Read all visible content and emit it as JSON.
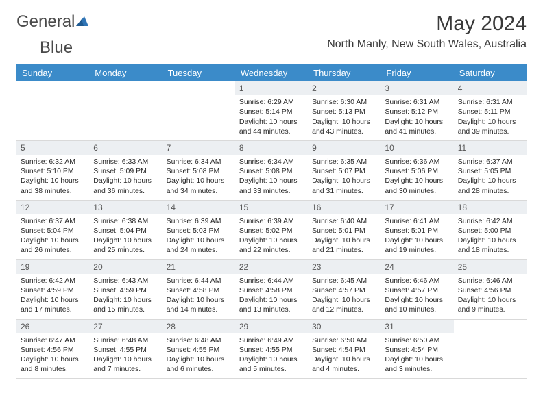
{
  "logo": {
    "word1": "General",
    "word2": "Blue"
  },
  "title": "May 2024",
  "location": "North Manly, New South Wales, Australia",
  "colors": {
    "header_bg": "#3b8bc9",
    "header_text": "#ffffff",
    "daynum_bg": "#eceff2",
    "logo_accent": "#2f74b5"
  },
  "day_headers": [
    "Sunday",
    "Monday",
    "Tuesday",
    "Wednesday",
    "Thursday",
    "Friday",
    "Saturday"
  ],
  "weeks": [
    [
      {
        "n": "",
        "sr": "",
        "ss": "",
        "dl": ""
      },
      {
        "n": "",
        "sr": "",
        "ss": "",
        "dl": ""
      },
      {
        "n": "",
        "sr": "",
        "ss": "",
        "dl": ""
      },
      {
        "n": "1",
        "sr": "Sunrise: 6:29 AM",
        "ss": "Sunset: 5:14 PM",
        "dl": "Daylight: 10 hours and 44 minutes."
      },
      {
        "n": "2",
        "sr": "Sunrise: 6:30 AM",
        "ss": "Sunset: 5:13 PM",
        "dl": "Daylight: 10 hours and 43 minutes."
      },
      {
        "n": "3",
        "sr": "Sunrise: 6:31 AM",
        "ss": "Sunset: 5:12 PM",
        "dl": "Daylight: 10 hours and 41 minutes."
      },
      {
        "n": "4",
        "sr": "Sunrise: 6:31 AM",
        "ss": "Sunset: 5:11 PM",
        "dl": "Daylight: 10 hours and 39 minutes."
      }
    ],
    [
      {
        "n": "5",
        "sr": "Sunrise: 6:32 AM",
        "ss": "Sunset: 5:10 PM",
        "dl": "Daylight: 10 hours and 38 minutes."
      },
      {
        "n": "6",
        "sr": "Sunrise: 6:33 AM",
        "ss": "Sunset: 5:09 PM",
        "dl": "Daylight: 10 hours and 36 minutes."
      },
      {
        "n": "7",
        "sr": "Sunrise: 6:34 AM",
        "ss": "Sunset: 5:08 PM",
        "dl": "Daylight: 10 hours and 34 minutes."
      },
      {
        "n": "8",
        "sr": "Sunrise: 6:34 AM",
        "ss": "Sunset: 5:08 PM",
        "dl": "Daylight: 10 hours and 33 minutes."
      },
      {
        "n": "9",
        "sr": "Sunrise: 6:35 AM",
        "ss": "Sunset: 5:07 PM",
        "dl": "Daylight: 10 hours and 31 minutes."
      },
      {
        "n": "10",
        "sr": "Sunrise: 6:36 AM",
        "ss": "Sunset: 5:06 PM",
        "dl": "Daylight: 10 hours and 30 minutes."
      },
      {
        "n": "11",
        "sr": "Sunrise: 6:37 AM",
        "ss": "Sunset: 5:05 PM",
        "dl": "Daylight: 10 hours and 28 minutes."
      }
    ],
    [
      {
        "n": "12",
        "sr": "Sunrise: 6:37 AM",
        "ss": "Sunset: 5:04 PM",
        "dl": "Daylight: 10 hours and 26 minutes."
      },
      {
        "n": "13",
        "sr": "Sunrise: 6:38 AM",
        "ss": "Sunset: 5:04 PM",
        "dl": "Daylight: 10 hours and 25 minutes."
      },
      {
        "n": "14",
        "sr": "Sunrise: 6:39 AM",
        "ss": "Sunset: 5:03 PM",
        "dl": "Daylight: 10 hours and 24 minutes."
      },
      {
        "n": "15",
        "sr": "Sunrise: 6:39 AM",
        "ss": "Sunset: 5:02 PM",
        "dl": "Daylight: 10 hours and 22 minutes."
      },
      {
        "n": "16",
        "sr": "Sunrise: 6:40 AM",
        "ss": "Sunset: 5:01 PM",
        "dl": "Daylight: 10 hours and 21 minutes."
      },
      {
        "n": "17",
        "sr": "Sunrise: 6:41 AM",
        "ss": "Sunset: 5:01 PM",
        "dl": "Daylight: 10 hours and 19 minutes."
      },
      {
        "n": "18",
        "sr": "Sunrise: 6:42 AM",
        "ss": "Sunset: 5:00 PM",
        "dl": "Daylight: 10 hours and 18 minutes."
      }
    ],
    [
      {
        "n": "19",
        "sr": "Sunrise: 6:42 AM",
        "ss": "Sunset: 4:59 PM",
        "dl": "Daylight: 10 hours and 17 minutes."
      },
      {
        "n": "20",
        "sr": "Sunrise: 6:43 AM",
        "ss": "Sunset: 4:59 PM",
        "dl": "Daylight: 10 hours and 15 minutes."
      },
      {
        "n": "21",
        "sr": "Sunrise: 6:44 AM",
        "ss": "Sunset: 4:58 PM",
        "dl": "Daylight: 10 hours and 14 minutes."
      },
      {
        "n": "22",
        "sr": "Sunrise: 6:44 AM",
        "ss": "Sunset: 4:58 PM",
        "dl": "Daylight: 10 hours and 13 minutes."
      },
      {
        "n": "23",
        "sr": "Sunrise: 6:45 AM",
        "ss": "Sunset: 4:57 PM",
        "dl": "Daylight: 10 hours and 12 minutes."
      },
      {
        "n": "24",
        "sr": "Sunrise: 6:46 AM",
        "ss": "Sunset: 4:57 PM",
        "dl": "Daylight: 10 hours and 10 minutes."
      },
      {
        "n": "25",
        "sr": "Sunrise: 6:46 AM",
        "ss": "Sunset: 4:56 PM",
        "dl": "Daylight: 10 hours and 9 minutes."
      }
    ],
    [
      {
        "n": "26",
        "sr": "Sunrise: 6:47 AM",
        "ss": "Sunset: 4:56 PM",
        "dl": "Daylight: 10 hours and 8 minutes."
      },
      {
        "n": "27",
        "sr": "Sunrise: 6:48 AM",
        "ss": "Sunset: 4:55 PM",
        "dl": "Daylight: 10 hours and 7 minutes."
      },
      {
        "n": "28",
        "sr": "Sunrise: 6:48 AM",
        "ss": "Sunset: 4:55 PM",
        "dl": "Daylight: 10 hours and 6 minutes."
      },
      {
        "n": "29",
        "sr": "Sunrise: 6:49 AM",
        "ss": "Sunset: 4:55 PM",
        "dl": "Daylight: 10 hours and 5 minutes."
      },
      {
        "n": "30",
        "sr": "Sunrise: 6:50 AM",
        "ss": "Sunset: 4:54 PM",
        "dl": "Daylight: 10 hours and 4 minutes."
      },
      {
        "n": "31",
        "sr": "Sunrise: 6:50 AM",
        "ss": "Sunset: 4:54 PM",
        "dl": "Daylight: 10 hours and 3 minutes."
      },
      {
        "n": "",
        "sr": "",
        "ss": "",
        "dl": ""
      }
    ]
  ]
}
